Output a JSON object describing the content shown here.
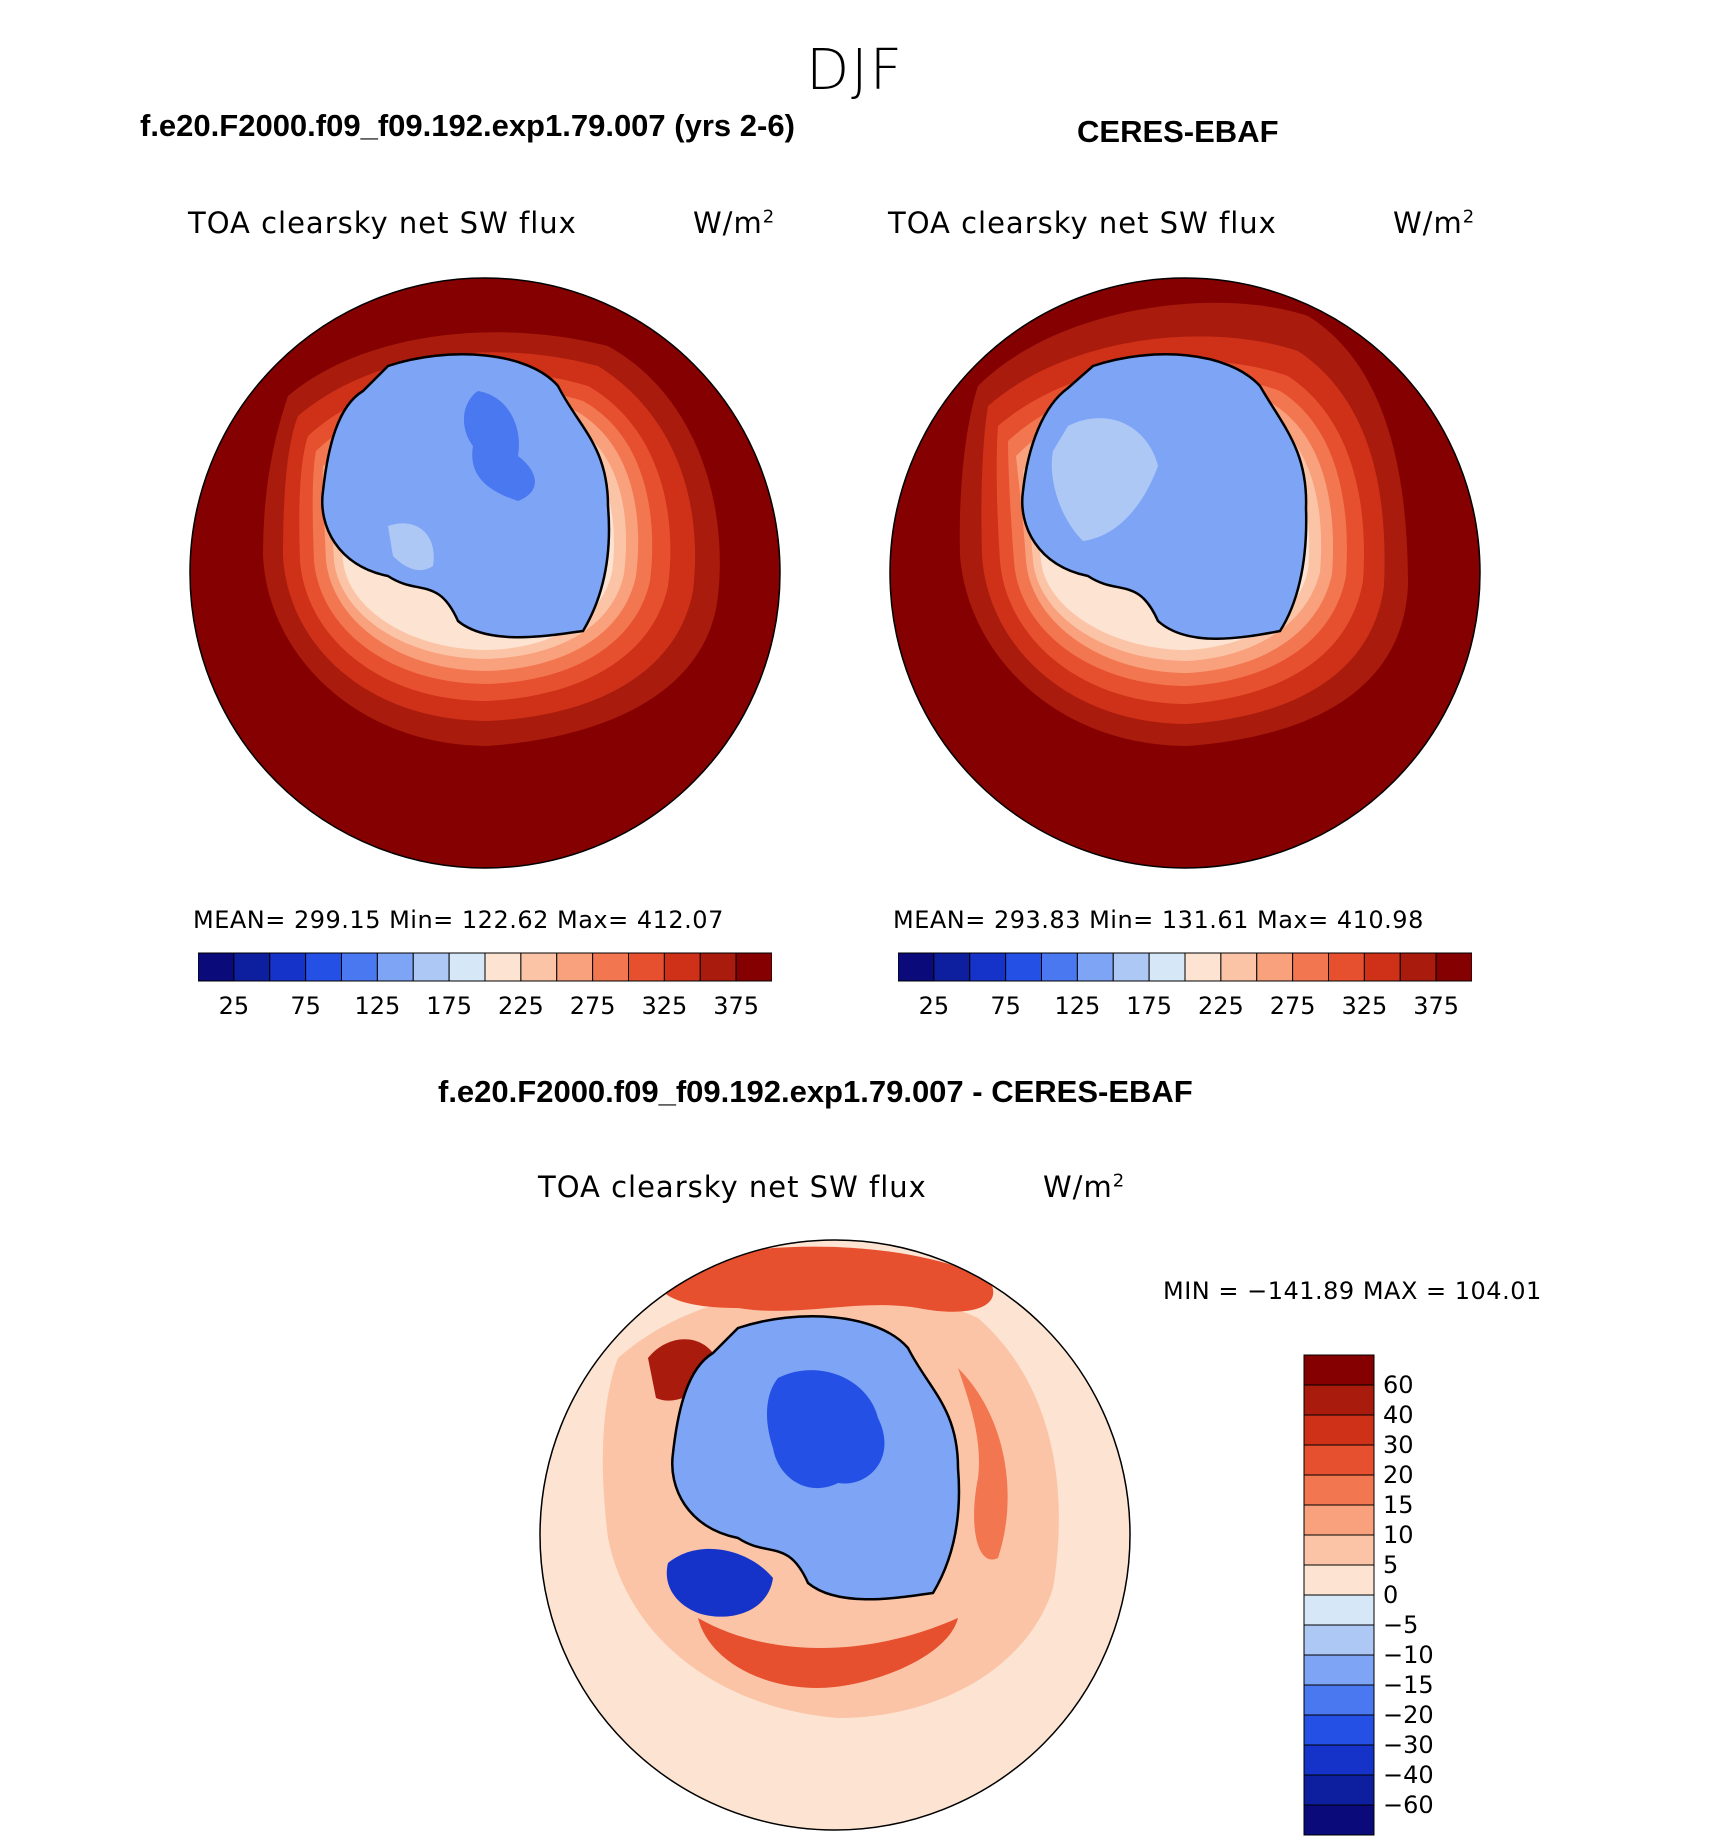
{
  "figure_title": "DJF",
  "panels": [
    {
      "case_title": "f.e20.F2000.f09_f09.192.exp1.79.007 (yrs 2-6)",
      "variable_label": "TOA clearsky net SW flux",
      "units": "W/m",
      "units_exponent": "2",
      "stats_text": "MEAN= 299.15   Min= 122.62   Max= 412.07",
      "colorbar_ticks": [
        "25",
        "75",
        "125",
        "175",
        "225",
        "275",
        "325",
        "375"
      ]
    },
    {
      "case_title": "CERES-EBAF",
      "variable_label": "TOA clearsky net SW flux",
      "units": "W/m",
      "units_exponent": "2",
      "stats_text": "MEAN= 293.83   Min= 131.61   Max= 410.98",
      "colorbar_ticks": [
        "25",
        "75",
        "125",
        "175",
        "225",
        "275",
        "325",
        "375"
      ]
    },
    {
      "case_title": "f.e20.F2000.f09_f09.192.exp1.79.007 - CERES-EBAF",
      "variable_label": "TOA clearsky net SW flux",
      "units": "W/m",
      "units_exponent": "2",
      "stats_text": "MIN = −141.89 MAX = 104.01",
      "colorbar_ticks": [
        "60",
        "40",
        "30",
        "20",
        "15",
        "10",
        "5",
        "0",
        "−5",
        "−10",
        "−15",
        "−20",
        "−30",
        "−40",
        "−60"
      ]
    }
  ],
  "chart_data": [
    {
      "type": "heatmap",
      "projection": "south polar stereographic",
      "title": "f.e20.F2000.f09_f09.192.exp1.79.007 (yrs 2-6)",
      "field": "TOA clearsky net SW flux",
      "units": "W/m2",
      "mean": 299.15,
      "min": 122.62,
      "max": 412.07,
      "contour_levels": [
        25,
        50,
        75,
        100,
        125,
        150,
        175,
        200,
        225,
        250,
        275,
        300,
        325,
        350,
        375
      ],
      "colors": [
        "#0a0a7a",
        "#0d1f9e",
        "#1533c8",
        "#2450e6",
        "#4a78f0",
        "#7ea4f5",
        "#aec8f6",
        "#d6e8f8",
        "#fde3d2",
        "#fcc4a6",
        "#f9a07c",
        "#f27650",
        "#e6502f",
        "#cf3018",
        "#a81b0d",
        "#850000"
      ]
    },
    {
      "type": "heatmap",
      "projection": "south polar stereographic",
      "title": "CERES-EBAF",
      "field": "TOA clearsky net SW flux",
      "units": "W/m2",
      "mean": 293.83,
      "min": 131.61,
      "max": 410.98,
      "contour_levels": [
        25,
        50,
        75,
        100,
        125,
        150,
        175,
        200,
        225,
        250,
        275,
        300,
        325,
        350,
        375
      ],
      "colors": [
        "#0a0a7a",
        "#0d1f9e",
        "#1533c8",
        "#2450e6",
        "#4a78f0",
        "#7ea4f5",
        "#aec8f6",
        "#d6e8f8",
        "#fde3d2",
        "#fcc4a6",
        "#f9a07c",
        "#f27650",
        "#e6502f",
        "#cf3018",
        "#a81b0d",
        "#850000"
      ]
    },
    {
      "type": "heatmap",
      "projection": "south polar stereographic",
      "title": "f.e20.F2000.f09_f09.192.exp1.79.007 - CERES-EBAF",
      "field": "TOA clearsky net SW flux",
      "units": "W/m2",
      "min": -141.89,
      "max": 104.01,
      "contour_levels": [
        -60,
        -40,
        -30,
        -20,
        -15,
        -10,
        -5,
        0,
        5,
        10,
        15,
        20,
        30,
        40,
        60
      ],
      "colors": [
        "#0a0a7a",
        "#0d1f9e",
        "#1533c8",
        "#2450e6",
        "#4a78f0",
        "#7ea4f5",
        "#aec8f6",
        "#d6e8f8",
        "#fde3d2",
        "#fcc4a6",
        "#f9a07c",
        "#f27650",
        "#e6502f",
        "#cf3018",
        "#a81b0d",
        "#850000"
      ]
    }
  ]
}
